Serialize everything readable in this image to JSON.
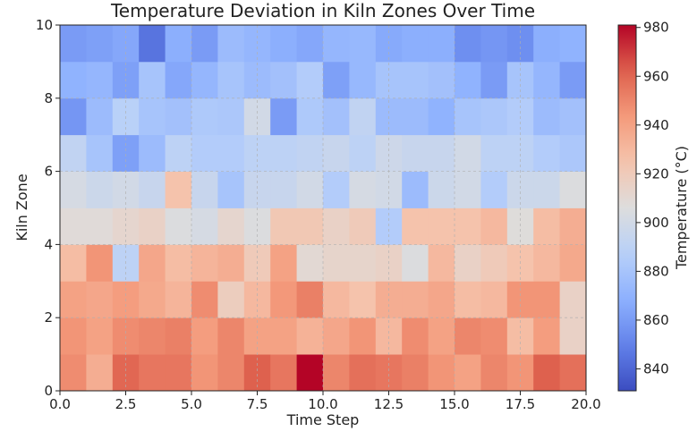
{
  "chart_data": {
    "type": "heatmap",
    "title": "Temperature Deviation in Kiln Zones Over Time",
    "xlabel": "Time Step",
    "ylabel": "Kiln Zone",
    "colorbar_label": "Temperature (°C)",
    "colormap": "coolwarm",
    "grid": true,
    "xlim": [
      0,
      20
    ],
    "ylim": [
      0,
      10
    ],
    "clim": [
      831,
      981
    ],
    "x_ticks": [
      "0.0",
      "2.5",
      "5.0",
      "7.5",
      "10.0",
      "12.5",
      "15.0",
      "17.5",
      "20.0"
    ],
    "y_ticks": [
      "0",
      "2",
      "4",
      "6",
      "8",
      "10"
    ],
    "colorbar_ticks": [
      "840",
      "860",
      "880",
      "900",
      "920",
      "940",
      "960",
      "980"
    ],
    "rows": [
      "0-1",
      "1-2",
      "2-3",
      "3-4",
      "4-5",
      "5-6",
      "6-7",
      "7-8",
      "8-9",
      "9-10"
    ],
    "columns": [
      "0-1",
      "1-2",
      "2-3",
      "3-4",
      "4-5",
      "5-6",
      "6-7",
      "7-8",
      "8-9",
      "9-10",
      "10-11",
      "11-12",
      "12-13",
      "13-14",
      "14-15",
      "15-16",
      "16-17",
      "17-18",
      "18-19",
      "19-20"
    ],
    "values": [
      [
        948,
        935,
        960,
        955,
        955,
        945,
        950,
        962,
        955,
        981,
        950,
        957,
        955,
        952,
        945,
        940,
        950,
        945,
        962,
        957
      ],
      [
        945,
        940,
        948,
        950,
        952,
        942,
        950,
        940,
        940,
        933,
        938,
        945,
        930,
        948,
        940,
        950,
        948,
        928,
        942,
        915
      ],
      [
        940,
        938,
        942,
        937,
        932,
        948,
        918,
        930,
        944,
        952,
        930,
        925,
        935,
        935,
        938,
        928,
        930,
        945,
        945,
        915
      ],
      [
        928,
        945,
        890,
        938,
        928,
        932,
        935,
        920,
        940,
        910,
        913,
        913,
        915,
        905,
        930,
        915,
        920,
        925,
        930,
        937
      ],
      [
        908,
        908,
        912,
        915,
        905,
        902,
        912,
        905,
        922,
        922,
        915,
        920,
        885,
        925,
        925,
        925,
        930,
        907,
        928,
        935
      ],
      [
        902,
        897,
        900,
        895,
        925,
        895,
        880,
        895,
        895,
        900,
        885,
        902,
        900,
        875,
        897,
        900,
        885,
        897,
        897,
        905
      ],
      [
        892,
        880,
        862,
        875,
        890,
        885,
        885,
        890,
        890,
        892,
        895,
        890,
        898,
        895,
        895,
        900,
        890,
        890,
        885,
        882
      ],
      [
        858,
        875,
        888,
        880,
        878,
        883,
        882,
        900,
        860,
        883,
        878,
        892,
        875,
        875,
        870,
        880,
        882,
        885,
        875,
        878
      ],
      [
        870,
        872,
        862,
        880,
        865,
        872,
        880,
        875,
        878,
        885,
        862,
        873,
        880,
        880,
        878,
        870,
        860,
        880,
        872,
        860
      ],
      [
        860,
        862,
        865,
        845,
        868,
        860,
        875,
        872,
        868,
        865,
        872,
        873,
        866,
        868,
        868,
        855,
        858,
        855,
        868,
        870
      ]
    ]
  }
}
